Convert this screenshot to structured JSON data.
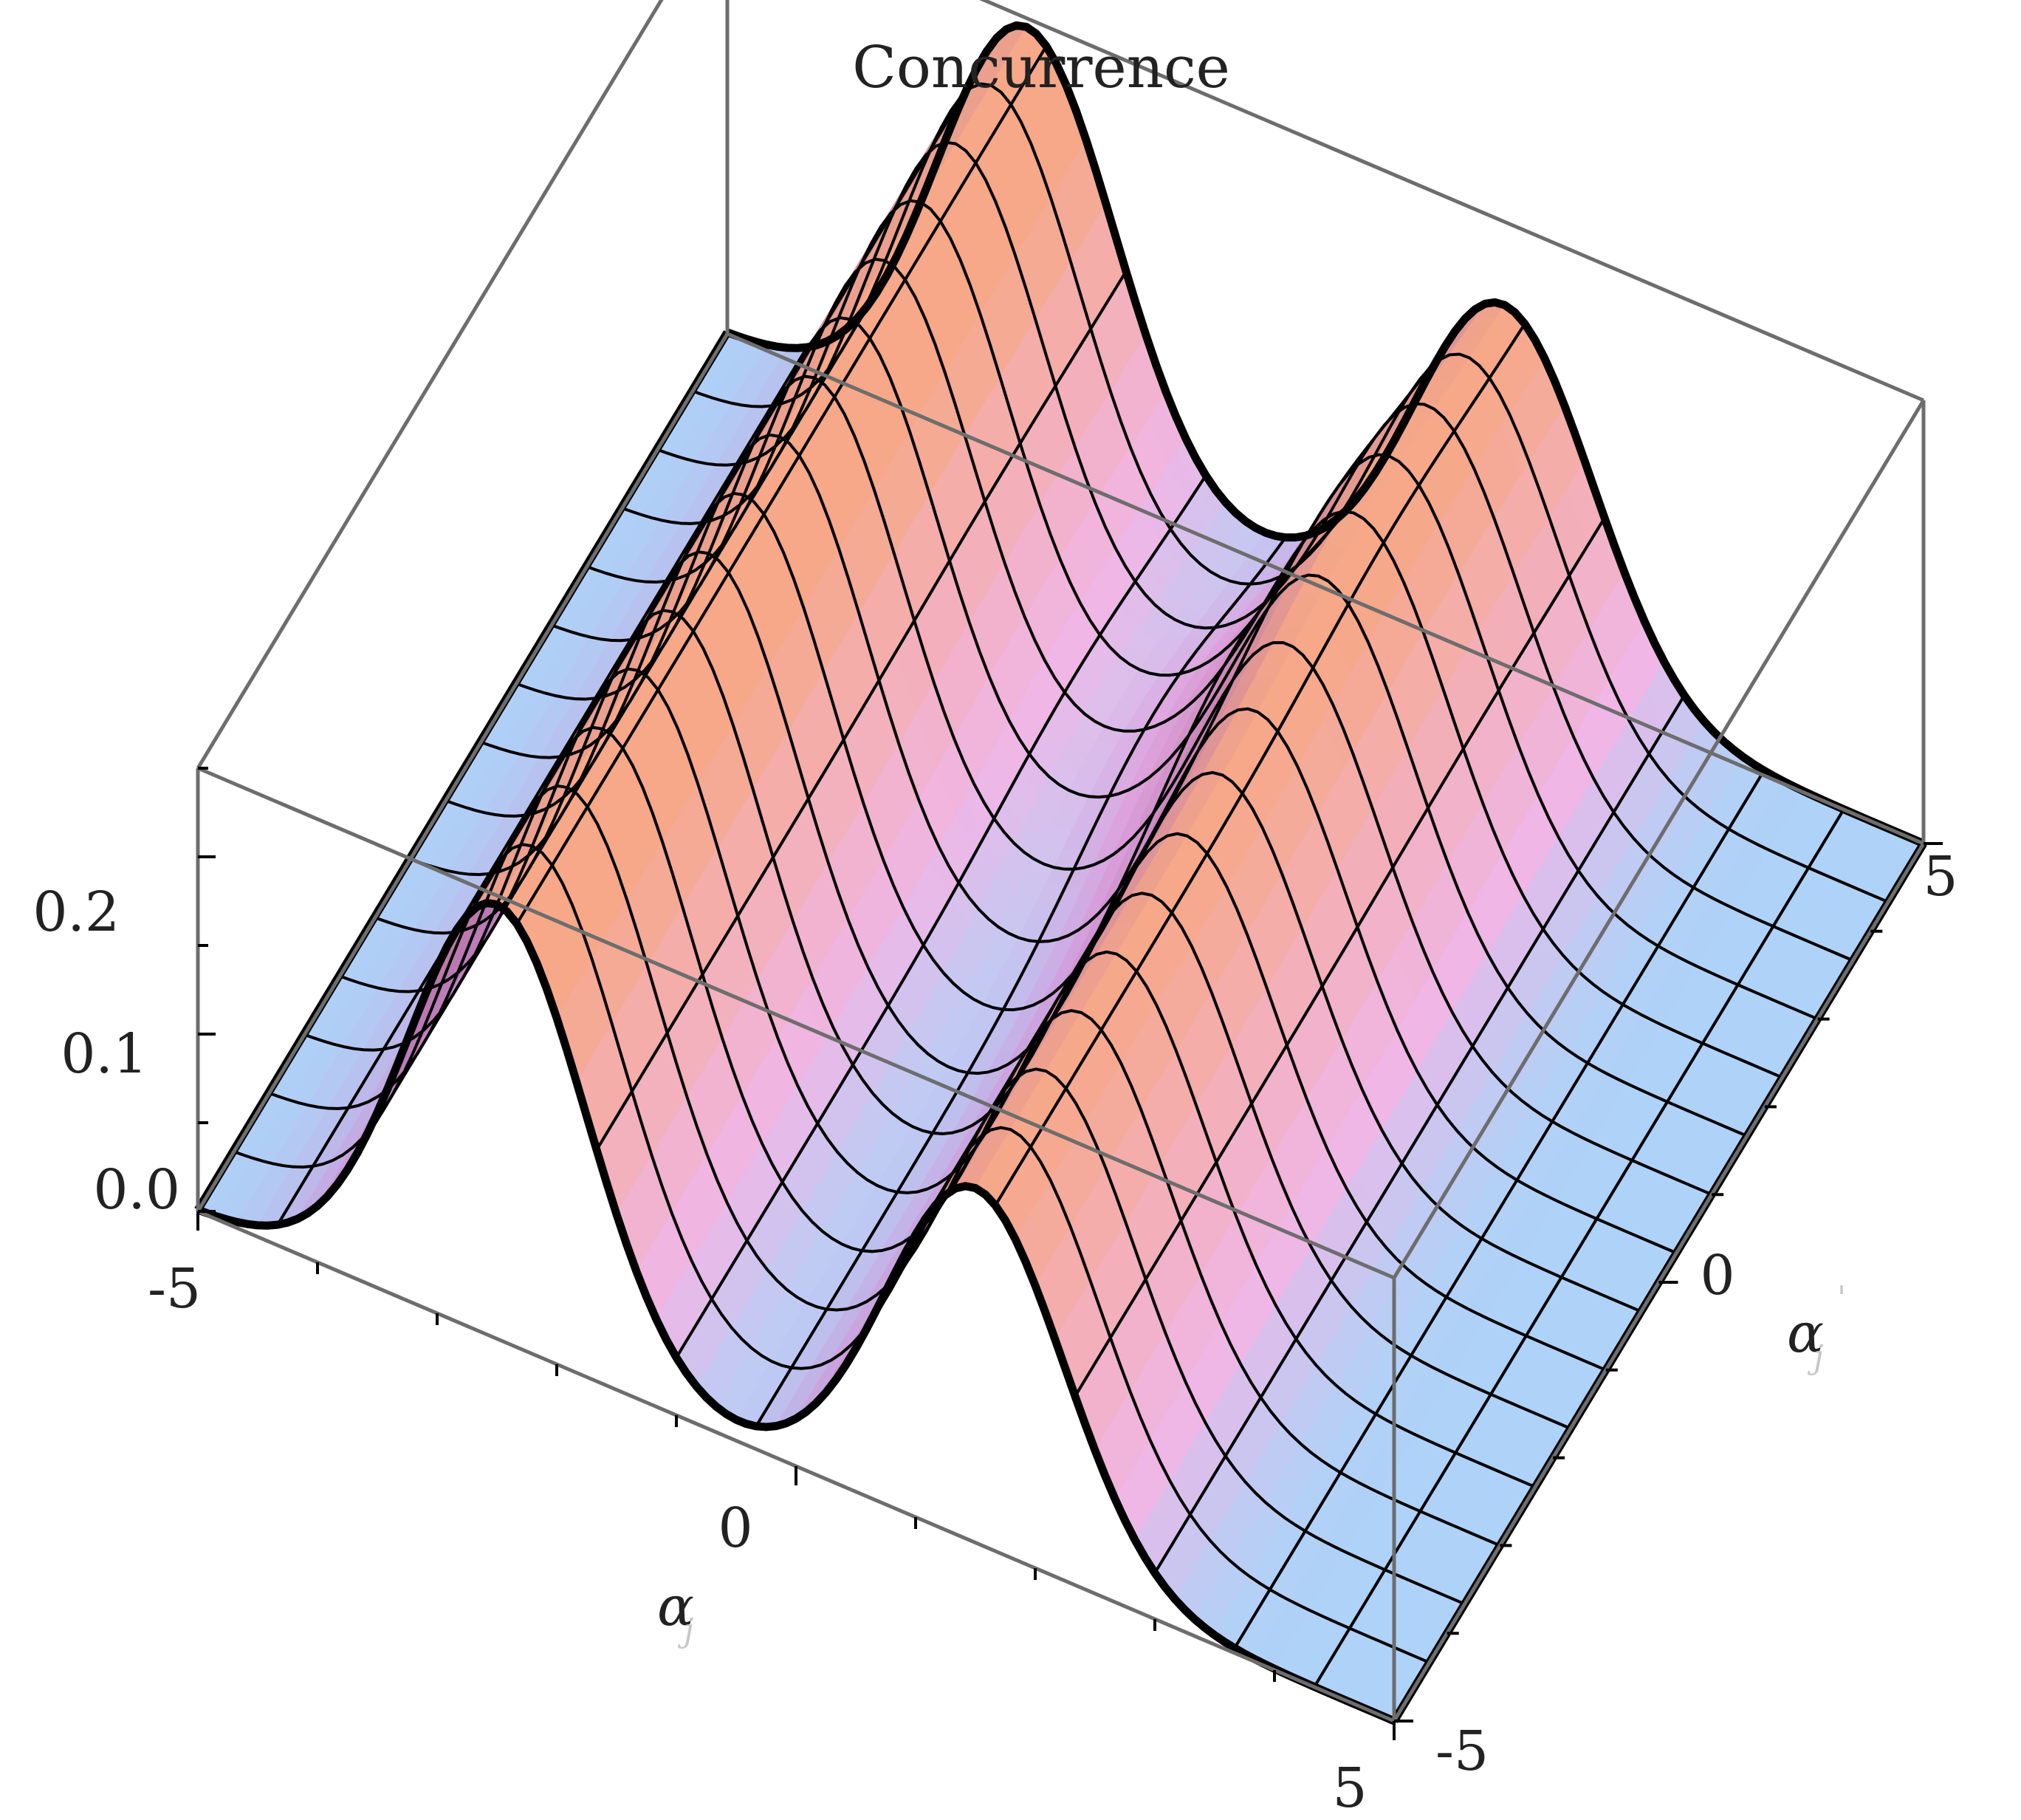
{
  "chart_data": {
    "type": "surface3d",
    "title": "Concurrence",
    "x_axis": {
      "label": "α",
      "subscript": "j",
      "range": [
        -5,
        5
      ],
      "ticks": [
        "-5",
        "0",
        "5"
      ]
    },
    "y_axis": {
      "label": "α",
      "subscript": "j",
      "superscript": "'",
      "range": [
        -5,
        5
      ],
      "ticks": [
        "-5",
        "0",
        "5"
      ]
    },
    "z_axis": {
      "range": [
        0,
        0.25
      ],
      "ticks": [
        "0.0",
        "0.1",
        "0.2"
      ]
    },
    "ridges": [
      {
        "center_x": -2.5,
        "height": 0.245
      },
      {
        "center_x": 1.5,
        "height": 0.2
      }
    ],
    "colors": {
      "low": "#aed2f8",
      "mid": "#f0b6e6",
      "high_warm": "#f6a888",
      "high_cool": "#9454b8",
      "mesh": "#000000",
      "box": "#6d6d6d"
    }
  }
}
